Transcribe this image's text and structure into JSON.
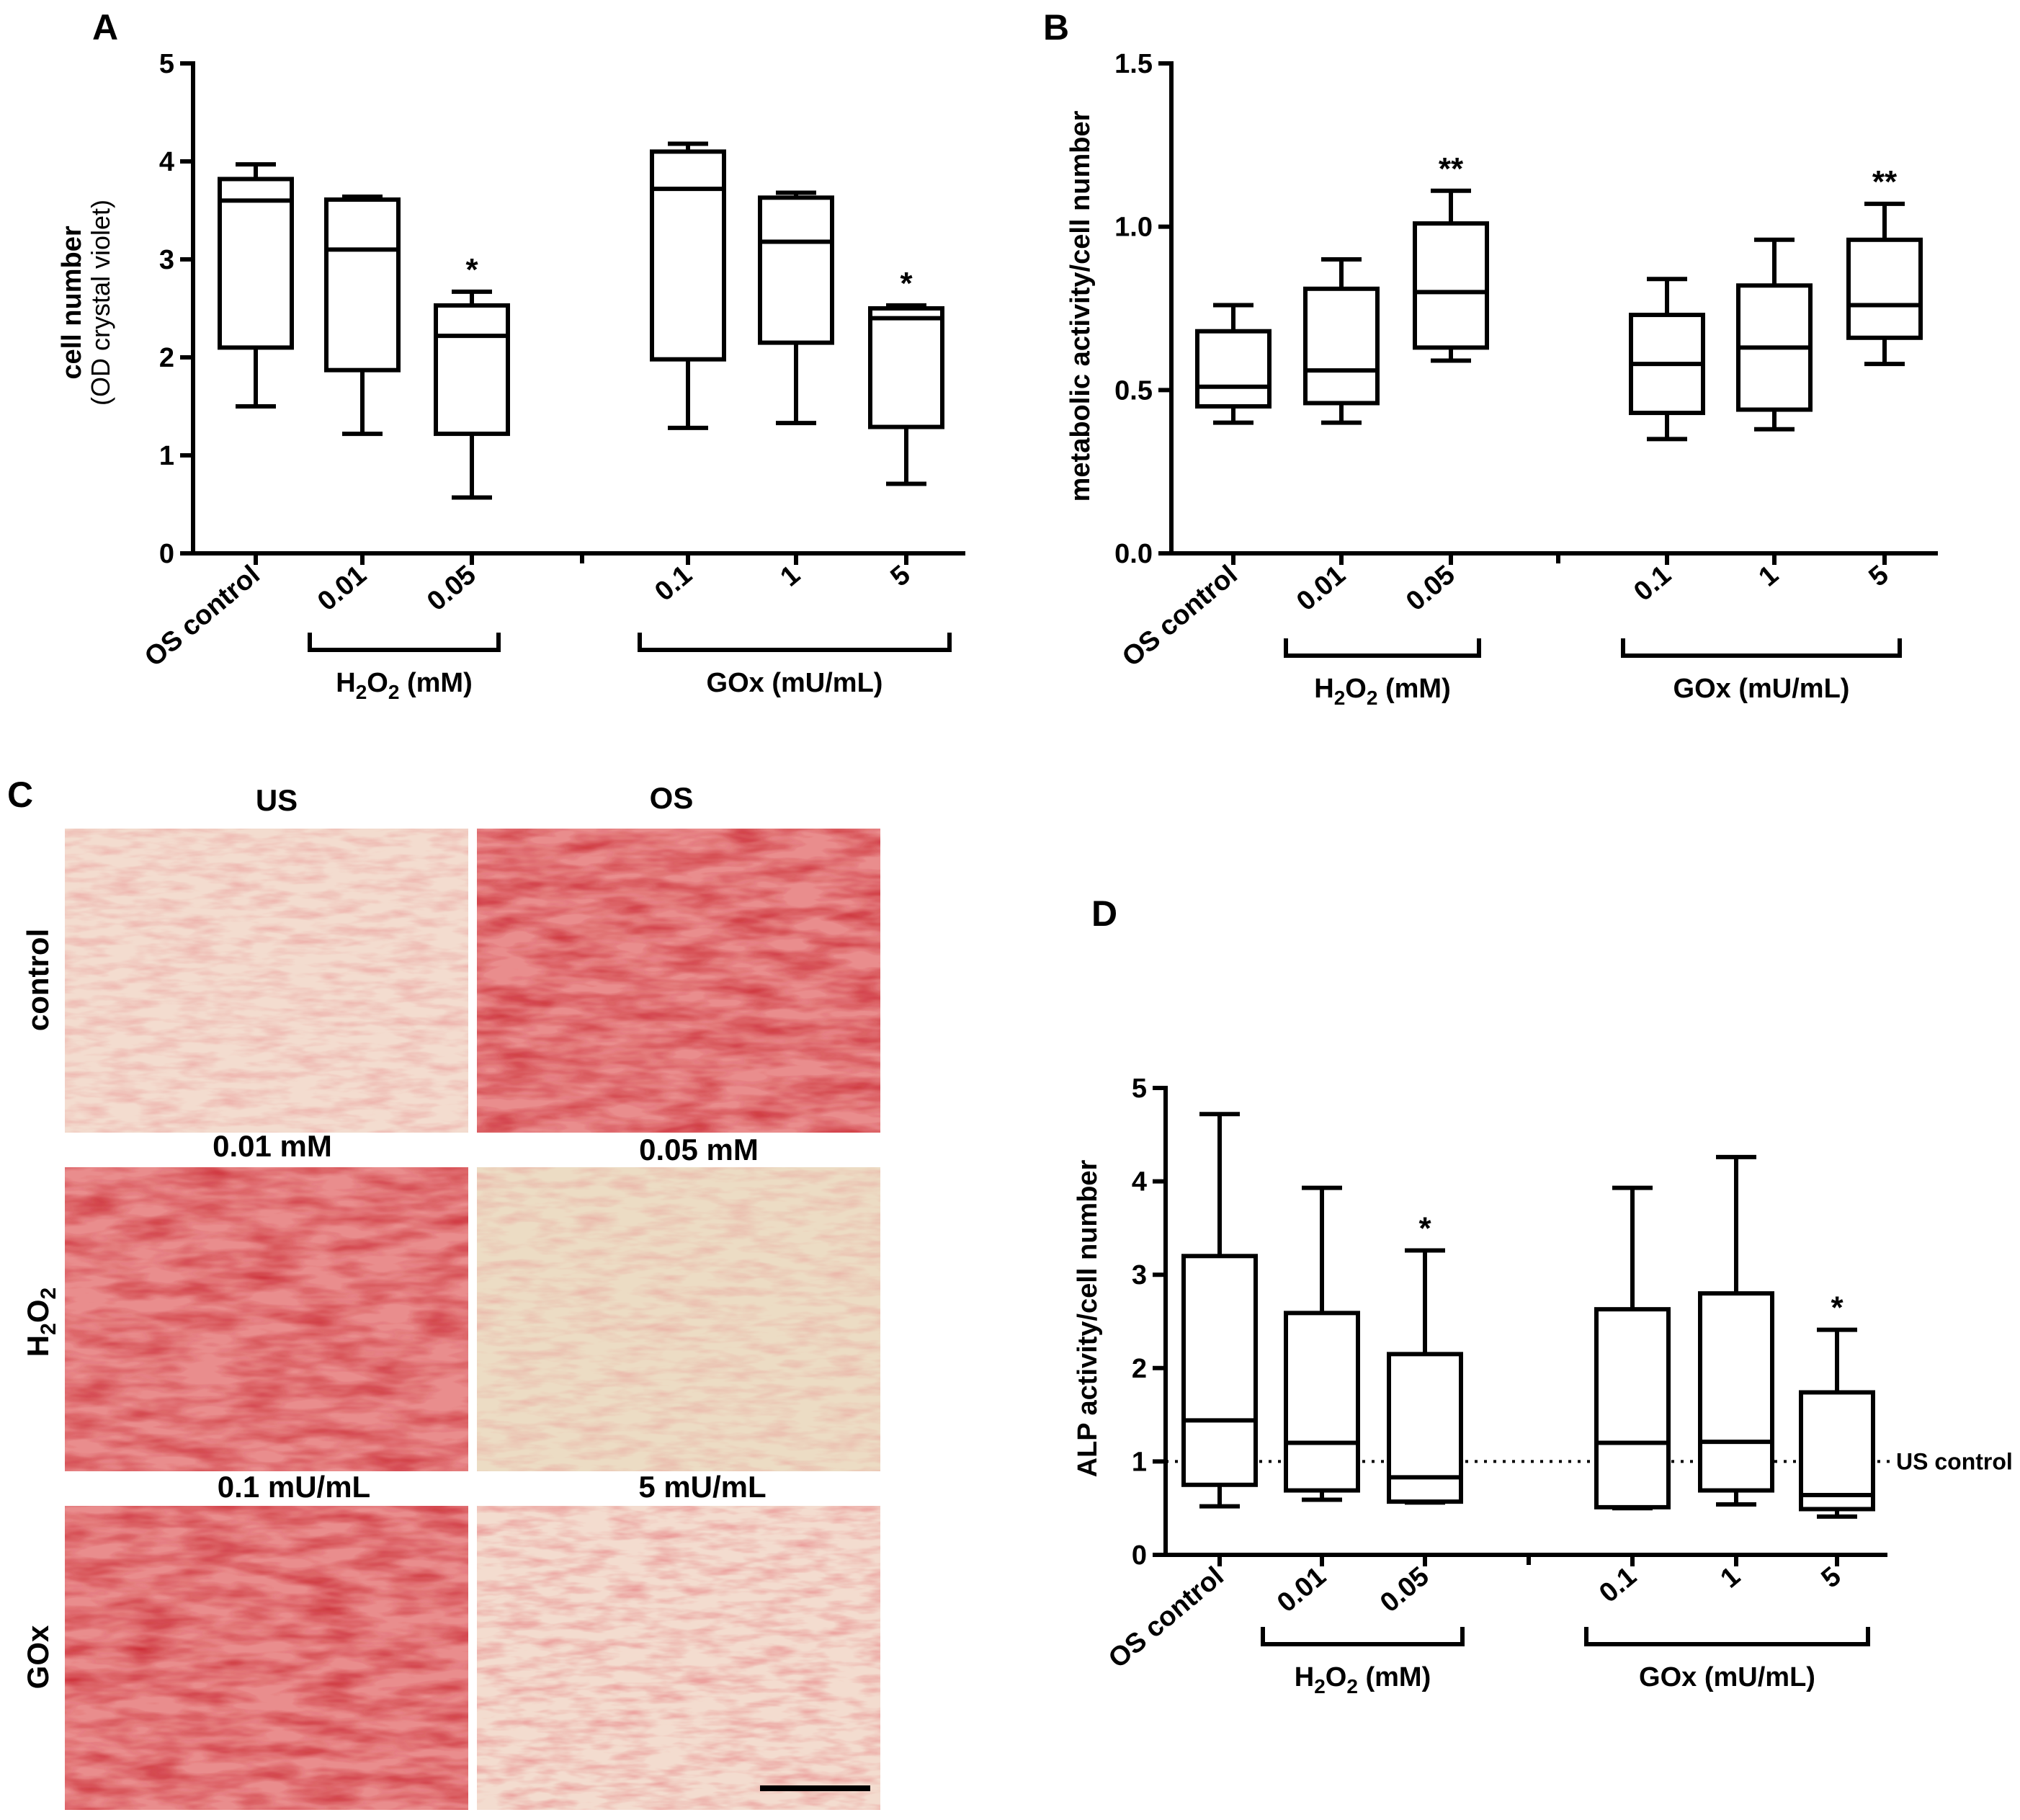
{
  "chart_data": [
    {
      "panel": "A",
      "type": "box",
      "ylabel": "cell number",
      "ylabel_sub": "(OD crystal violet)",
      "ylim": [
        0,
        5
      ],
      "yticks": [
        "0",
        "1",
        "2",
        "3",
        "4",
        "5"
      ],
      "categories": [
        "OS control",
        "0.01",
        "0.05",
        "0.1",
        "1",
        "5"
      ],
      "groups": [
        {
          "label": "H2O2 (mM)",
          "sub": "2",
          "members": [
            1,
            2
          ]
        },
        {
          "label": "GOx (mU/mL)",
          "members": [
            3,
            4,
            5
          ]
        }
      ],
      "boxes": [
        {
          "min": 1.5,
          "q1": 2.1,
          "median": 3.6,
          "q3": 3.82,
          "max": 3.97,
          "sig": ""
        },
        {
          "min": 1.22,
          "q1": 1.87,
          "median": 3.1,
          "q3": 3.61,
          "max": 3.64,
          "sig": ""
        },
        {
          "min": 0.57,
          "q1": 1.22,
          "median": 2.22,
          "q3": 2.53,
          "max": 2.67,
          "sig": "*"
        },
        {
          "min": 1.28,
          "q1": 1.98,
          "median": 3.72,
          "q3": 4.1,
          "max": 4.18,
          "sig": ""
        },
        {
          "min": 1.33,
          "q1": 2.15,
          "median": 3.18,
          "q3": 3.63,
          "max": 3.68,
          "sig": ""
        },
        {
          "min": 0.71,
          "q1": 1.29,
          "median": 2.4,
          "q3": 2.5,
          "max": 2.53,
          "sig": "*"
        }
      ]
    },
    {
      "panel": "B",
      "type": "box",
      "ylabel": "metabolic activity/cell number",
      "ylim": [
        0,
        1.5
      ],
      "yticks": [
        "0.0",
        "0.5",
        "1.0",
        "1.5"
      ],
      "categories": [
        "OS control",
        "0.01",
        "0.05",
        "0.1",
        "1",
        "5"
      ],
      "groups": [
        {
          "label": "H2O2 (mM)",
          "sub": "2",
          "members": [
            1,
            2
          ]
        },
        {
          "label": "GOx (mU/mL)",
          "members": [
            3,
            4,
            5
          ]
        }
      ],
      "boxes": [
        {
          "min": 0.4,
          "q1": 0.45,
          "median": 0.51,
          "q3": 0.68,
          "max": 0.76,
          "sig": ""
        },
        {
          "min": 0.4,
          "q1": 0.46,
          "median": 0.56,
          "q3": 0.81,
          "max": 0.9,
          "sig": ""
        },
        {
          "min": 0.59,
          "q1": 0.63,
          "median": 0.8,
          "q3": 1.01,
          "max": 1.11,
          "sig": "**"
        },
        {
          "min": 0.35,
          "q1": 0.43,
          "median": 0.58,
          "q3": 0.73,
          "max": 0.84,
          "sig": ""
        },
        {
          "min": 0.38,
          "q1": 0.44,
          "median": 0.63,
          "q3": 0.82,
          "max": 0.96,
          "sig": ""
        },
        {
          "min": 0.58,
          "q1": 0.66,
          "median": 0.76,
          "q3": 0.96,
          "max": 1.07,
          "sig": "**"
        }
      ]
    },
    {
      "panel": "D",
      "type": "box",
      "ylabel": "ALP activity/cell number",
      "ylim": [
        0,
        5
      ],
      "yticks": [
        "0",
        "1",
        "2",
        "3",
        "4",
        "5"
      ],
      "reference_line": {
        "value": 1,
        "label": "US control",
        "style": "dotted"
      },
      "categories": [
        "OS control",
        "0.01",
        "0.05",
        "0.1",
        "1",
        "5"
      ],
      "groups": [
        {
          "label": "H2O2 (mM)",
          "sub": "2",
          "members": [
            1,
            2
          ]
        },
        {
          "label": "GOx (mU/mL)",
          "members": [
            3,
            4,
            5
          ]
        }
      ],
      "boxes": [
        {
          "min": 0.52,
          "q1": 0.75,
          "median": 1.44,
          "q3": 3.2,
          "max": 4.72,
          "sig": ""
        },
        {
          "min": 0.59,
          "q1": 0.69,
          "median": 1.2,
          "q3": 2.59,
          "max": 3.93,
          "sig": ""
        },
        {
          "min": 0.56,
          "q1": 0.57,
          "median": 0.83,
          "q3": 2.15,
          "max": 3.26,
          "sig": "*"
        },
        {
          "min": 0.5,
          "q1": 0.51,
          "median": 1.2,
          "q3": 2.63,
          "max": 3.93,
          "sig": ""
        },
        {
          "min": 0.54,
          "q1": 0.69,
          "median": 1.21,
          "q3": 2.8,
          "max": 4.26,
          "sig": ""
        },
        {
          "min": 0.41,
          "q1": 0.49,
          "median": 0.64,
          "q3": 1.74,
          "max": 2.41,
          "sig": "*"
        }
      ]
    }
  ],
  "micrographs": {
    "panel": "C",
    "col_labels": [
      "US",
      "OS"
    ],
    "row_labels": [
      "control",
      "H2O2",
      "GOx"
    ],
    "row_label_sub": "2",
    "cell_labels": [
      "0.01 mM",
      "0.05 mM",
      "0.1 mU/mL",
      "5 mU/mL"
    ],
    "stain_colors": {
      "light": "#f3dccf",
      "medium": "#e98d8d",
      "dense": "#c8202a",
      "pale": "#ecdcc4"
    }
  }
}
